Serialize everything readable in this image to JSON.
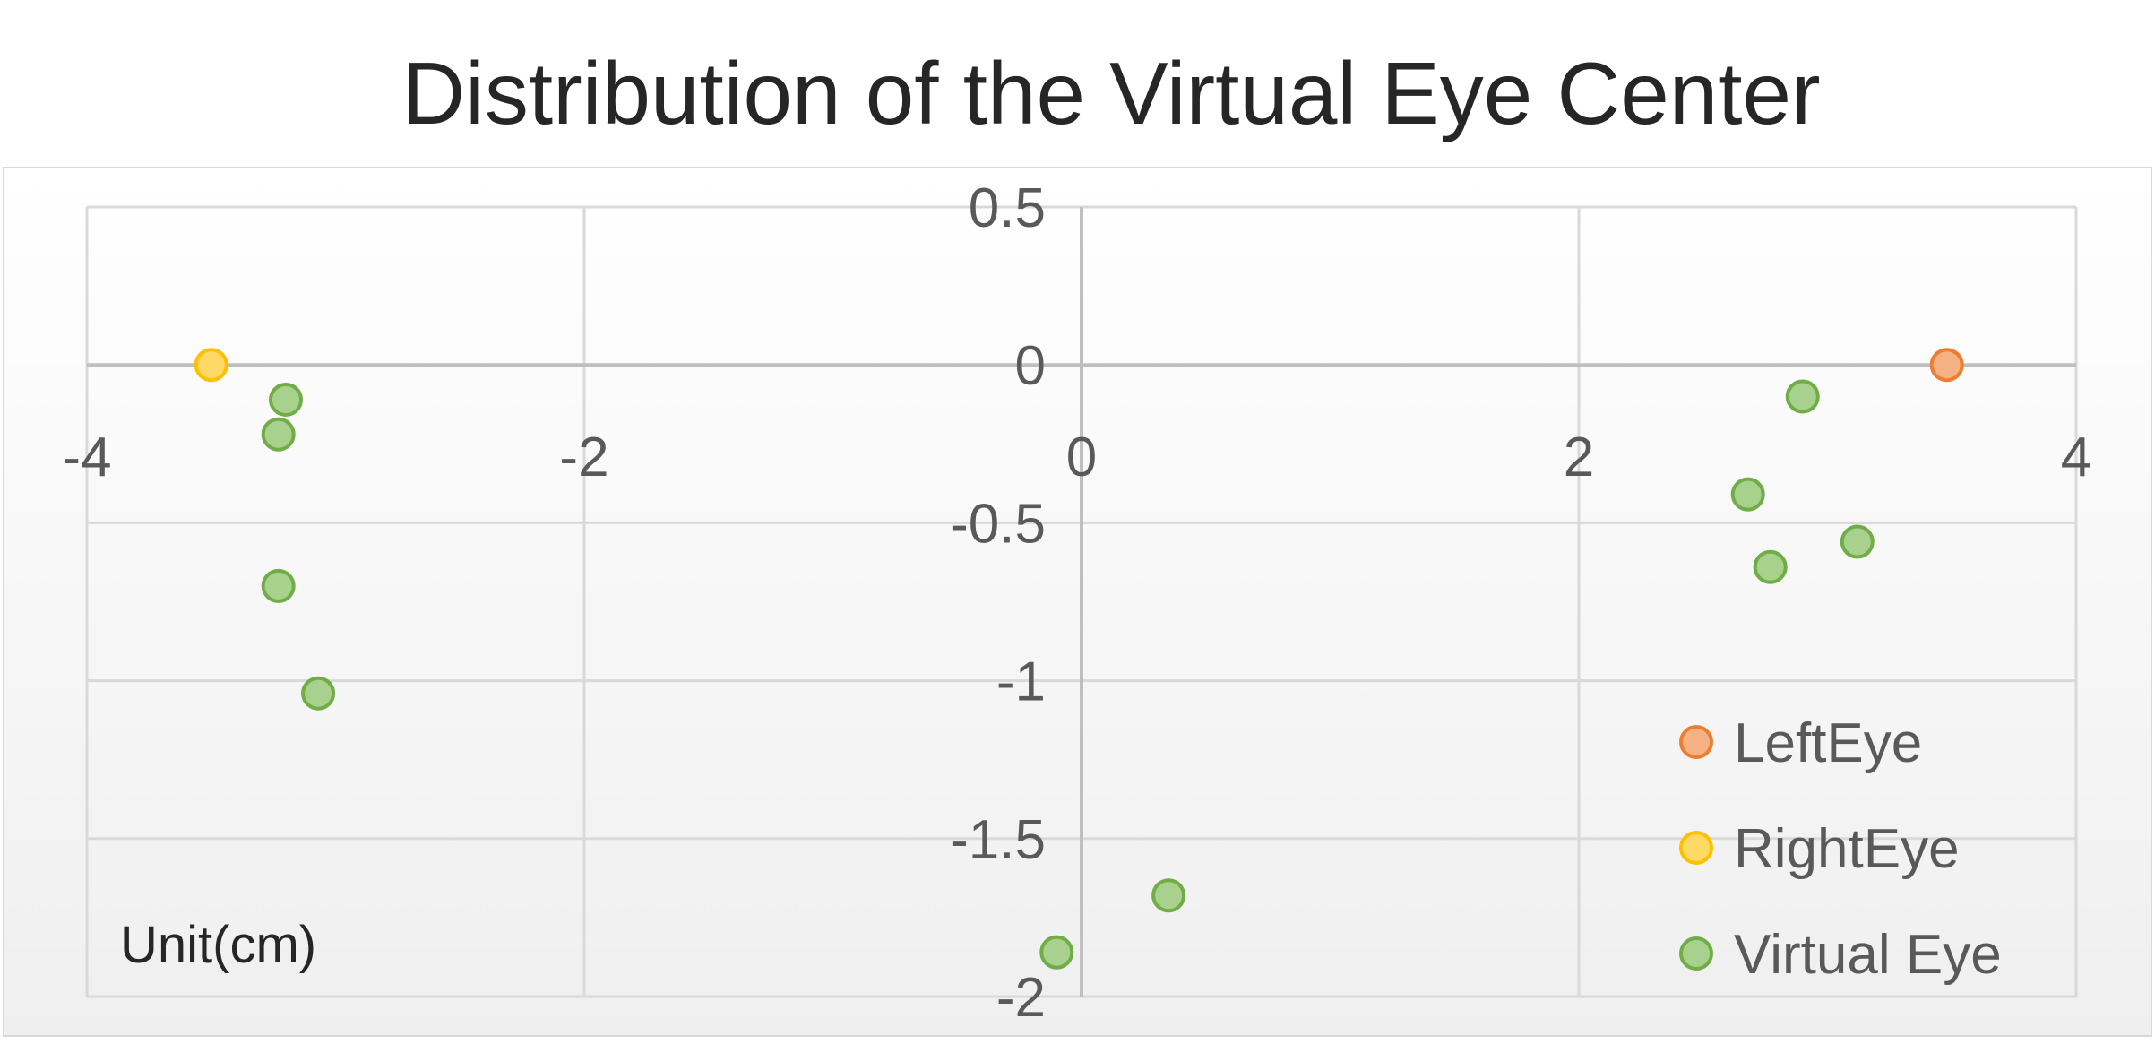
{
  "chart_data": {
    "type": "scatter",
    "title": "Distribution of the Virtual Eye Center",
    "xlabel": "",
    "ylabel": "",
    "xlim": [
      -4,
      4
    ],
    "ylim": [
      -2,
      0.5
    ],
    "x_ticks": [
      -4,
      -2,
      0,
      2,
      4
    ],
    "y_ticks": [
      0.5,
      0,
      -0.5,
      -1,
      -1.5,
      -2
    ],
    "x_tick_labels": [
      "-4",
      "-2",
      "0",
      "2",
      "4"
    ],
    "y_tick_labels": [
      "0.5",
      "0",
      "-0.5",
      "-1",
      "-1.5",
      "-2"
    ],
    "grid": true,
    "legend_position": "bottom-right",
    "annotation": "Unit(cm)",
    "series": [
      {
        "name": "LeftEye",
        "color": "#F4B183",
        "edge": "#ED7D31",
        "points": [
          [
            3.48,
            0.0
          ]
        ]
      },
      {
        "name": "RightEye",
        "color": "#FFD966",
        "edge": "#FFC000",
        "points": [
          [
            -3.5,
            0.0
          ]
        ]
      },
      {
        "name": "Virtual Eye",
        "color": "#A9D18E",
        "edge": "#70AD47",
        "points": [
          [
            -3.2,
            -0.11
          ],
          [
            -3.23,
            -0.22
          ],
          [
            -3.23,
            -0.7
          ],
          [
            -3.07,
            -1.04
          ],
          [
            -0.1,
            -1.86
          ],
          [
            0.35,
            -1.68
          ],
          [
            2.9,
            -0.1
          ],
          [
            2.68,
            -0.41
          ],
          [
            2.77,
            -0.64
          ],
          [
            3.12,
            -0.56
          ]
        ]
      }
    ]
  }
}
